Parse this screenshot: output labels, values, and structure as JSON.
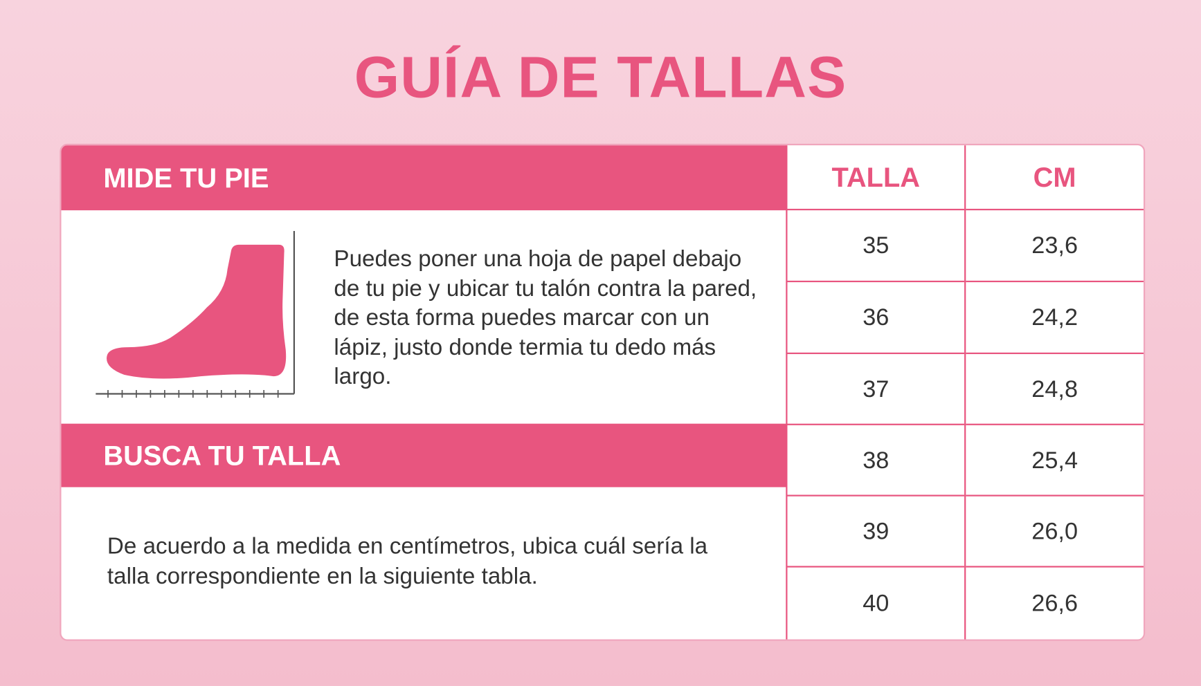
{
  "title": "GUÍA DE TALLAS",
  "colors": {
    "accent": "#e8557f",
    "background": "#f6c6d4",
    "text": "#333333"
  },
  "measure": {
    "heading": "MIDE TU PIE",
    "icon": "foot-measure-icon",
    "text": "Puedes poner una hoja de papel debajo de tu pie y ubicar tu talón contra la pared, de esta forma puedes marcar con un lápiz, justo donde termia tu dedo más largo."
  },
  "find": {
    "heading": "BUSCA TU TALLA",
    "text": "De acuerdo a la medida en centímetros, ubica cuál sería la talla correspondiente en la siguiente tabla."
  },
  "table": {
    "headers": [
      "TALLA",
      "CM"
    ],
    "rows": [
      [
        "35",
        "23,6"
      ],
      [
        "36",
        "24,2"
      ],
      [
        "37",
        "24,8"
      ],
      [
        "38",
        "25,4"
      ],
      [
        "39",
        "26,0"
      ],
      [
        "40",
        "26,6"
      ]
    ]
  }
}
